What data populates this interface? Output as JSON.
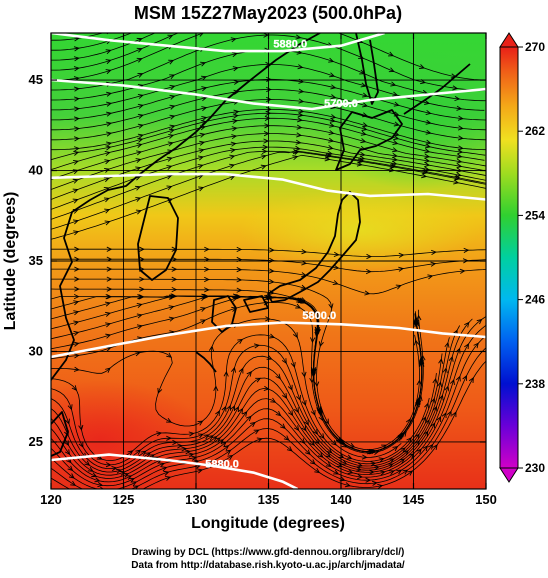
{
  "title": "MSM 15Z27May2023 (500.0hPa)",
  "axes": {
    "xlabel": "Longitude (degrees)",
    "ylabel": "Latitude  (degrees)",
    "xlim": [
      120,
      150
    ],
    "ylim": [
      22.4,
      47.6
    ],
    "xticks": [
      120,
      125,
      130,
      135,
      140,
      145,
      150
    ],
    "yticks": [
      25,
      30,
      35,
      40,
      45
    ]
  },
  "colorbar": {
    "min": 230,
    "max": 270,
    "ticks": [
      230,
      238,
      246,
      254,
      262,
      270
    ]
  },
  "contours": [
    {
      "label": "5880.0",
      "label_lon": 136.5,
      "label_lat": 46.8,
      "points": [
        [
          120,
          47.6
        ],
        [
          124,
          47.2
        ],
        [
          128,
          46.9
        ],
        [
          132,
          46.6
        ],
        [
          136,
          46.6
        ],
        [
          140,
          46.9
        ],
        [
          143,
          47.6
        ]
      ]
    },
    {
      "label": "5700.0",
      "label_lon": 140.0,
      "label_lat": 43.5,
      "points": [
        [
          120,
          45.0
        ],
        [
          125,
          44.7
        ],
        [
          130,
          44.2
        ],
        [
          134,
          43.7
        ],
        [
          138,
          43.4
        ],
        [
          142,
          43.9
        ],
        [
          146,
          44.2
        ],
        [
          150,
          44.5
        ]
      ]
    },
    {
      "label": "",
      "label_lon": 0,
      "label_lat": 0,
      "points": [
        [
          120,
          39.6
        ],
        [
          124,
          39.7
        ],
        [
          128,
          39.8
        ],
        [
          132,
          39.8
        ],
        [
          136,
          39.5
        ],
        [
          139,
          38.9
        ],
        [
          142,
          38.6
        ],
        [
          146,
          38.7
        ],
        [
          150,
          38.4
        ]
      ]
    },
    {
      "label": "5800.0",
      "label_lon": 138.5,
      "label_lat": 31.8,
      "points": [
        [
          120,
          29.7
        ],
        [
          124,
          30.3
        ],
        [
          128,
          30.9
        ],
        [
          132,
          31.4
        ],
        [
          136,
          31.6
        ],
        [
          140,
          31.5
        ],
        [
          144,
          31.3
        ],
        [
          147,
          31.0
        ],
        [
          150,
          30.8
        ]
      ]
    },
    {
      "label": "5880.0",
      "label_lon": 131.8,
      "label_lat": 23.6,
      "points": [
        [
          120,
          24.0
        ],
        [
          124,
          24.3
        ],
        [
          128,
          24.0
        ],
        [
          131,
          23.7
        ],
        [
          134,
          23.3
        ],
        [
          136,
          22.8
        ],
        [
          137,
          22.4
        ]
      ]
    }
  ],
  "footer": {
    "line1": "Drawing by DCL (https://www.gfd-dennou.org/library/dcl/)",
    "line2": "Data from http://database.rish.kyoto-u.ac.jp/arch/jmadata/"
  }
}
